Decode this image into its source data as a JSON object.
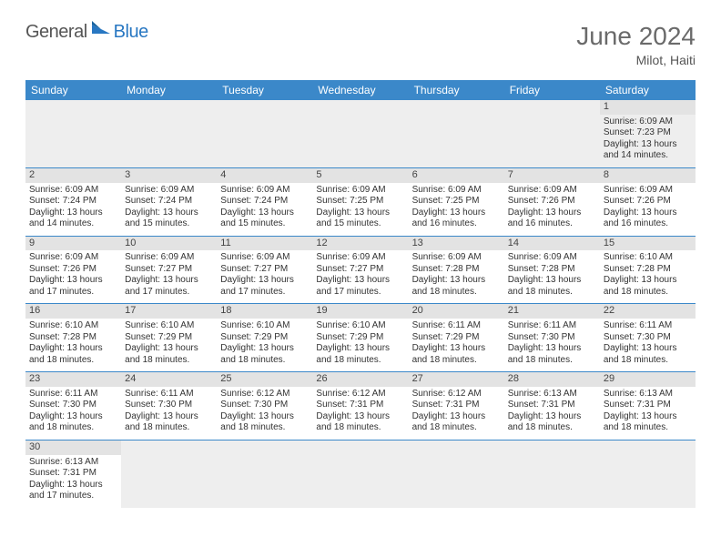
{
  "logo": {
    "part1": "General",
    "part2": "Blue"
  },
  "title": "June 2024",
  "location": "Milot, Haiti",
  "colors": {
    "header_bg": "#3b88c9",
    "header_text": "#ffffff",
    "daynum_bg": "#e3e3e3",
    "border": "#3b88c9",
    "logo_gray": "#555555",
    "logo_blue": "#2877c2"
  },
  "weekdays": [
    "Sunday",
    "Monday",
    "Tuesday",
    "Wednesday",
    "Thursday",
    "Friday",
    "Saturday"
  ],
  "weeks": [
    [
      null,
      null,
      null,
      null,
      null,
      null,
      {
        "d": "1",
        "sr": "Sunrise: 6:09 AM",
        "ss": "Sunset: 7:23 PM",
        "dl1": "Daylight: 13 hours",
        "dl2": "and 14 minutes."
      }
    ],
    [
      {
        "d": "2",
        "sr": "Sunrise: 6:09 AM",
        "ss": "Sunset: 7:24 PM",
        "dl1": "Daylight: 13 hours",
        "dl2": "and 14 minutes."
      },
      {
        "d": "3",
        "sr": "Sunrise: 6:09 AM",
        "ss": "Sunset: 7:24 PM",
        "dl1": "Daylight: 13 hours",
        "dl2": "and 15 minutes."
      },
      {
        "d": "4",
        "sr": "Sunrise: 6:09 AM",
        "ss": "Sunset: 7:24 PM",
        "dl1": "Daylight: 13 hours",
        "dl2": "and 15 minutes."
      },
      {
        "d": "5",
        "sr": "Sunrise: 6:09 AM",
        "ss": "Sunset: 7:25 PM",
        "dl1": "Daylight: 13 hours",
        "dl2": "and 15 minutes."
      },
      {
        "d": "6",
        "sr": "Sunrise: 6:09 AM",
        "ss": "Sunset: 7:25 PM",
        "dl1": "Daylight: 13 hours",
        "dl2": "and 16 minutes."
      },
      {
        "d": "7",
        "sr": "Sunrise: 6:09 AM",
        "ss": "Sunset: 7:26 PM",
        "dl1": "Daylight: 13 hours",
        "dl2": "and 16 minutes."
      },
      {
        "d": "8",
        "sr": "Sunrise: 6:09 AM",
        "ss": "Sunset: 7:26 PM",
        "dl1": "Daylight: 13 hours",
        "dl2": "and 16 minutes."
      }
    ],
    [
      {
        "d": "9",
        "sr": "Sunrise: 6:09 AM",
        "ss": "Sunset: 7:26 PM",
        "dl1": "Daylight: 13 hours",
        "dl2": "and 17 minutes."
      },
      {
        "d": "10",
        "sr": "Sunrise: 6:09 AM",
        "ss": "Sunset: 7:27 PM",
        "dl1": "Daylight: 13 hours",
        "dl2": "and 17 minutes."
      },
      {
        "d": "11",
        "sr": "Sunrise: 6:09 AM",
        "ss": "Sunset: 7:27 PM",
        "dl1": "Daylight: 13 hours",
        "dl2": "and 17 minutes."
      },
      {
        "d": "12",
        "sr": "Sunrise: 6:09 AM",
        "ss": "Sunset: 7:27 PM",
        "dl1": "Daylight: 13 hours",
        "dl2": "and 17 minutes."
      },
      {
        "d": "13",
        "sr": "Sunrise: 6:09 AM",
        "ss": "Sunset: 7:28 PM",
        "dl1": "Daylight: 13 hours",
        "dl2": "and 18 minutes."
      },
      {
        "d": "14",
        "sr": "Sunrise: 6:09 AM",
        "ss": "Sunset: 7:28 PM",
        "dl1": "Daylight: 13 hours",
        "dl2": "and 18 minutes."
      },
      {
        "d": "15",
        "sr": "Sunrise: 6:10 AM",
        "ss": "Sunset: 7:28 PM",
        "dl1": "Daylight: 13 hours",
        "dl2": "and 18 minutes."
      }
    ],
    [
      {
        "d": "16",
        "sr": "Sunrise: 6:10 AM",
        "ss": "Sunset: 7:28 PM",
        "dl1": "Daylight: 13 hours",
        "dl2": "and 18 minutes."
      },
      {
        "d": "17",
        "sr": "Sunrise: 6:10 AM",
        "ss": "Sunset: 7:29 PM",
        "dl1": "Daylight: 13 hours",
        "dl2": "and 18 minutes."
      },
      {
        "d": "18",
        "sr": "Sunrise: 6:10 AM",
        "ss": "Sunset: 7:29 PM",
        "dl1": "Daylight: 13 hours",
        "dl2": "and 18 minutes."
      },
      {
        "d": "19",
        "sr": "Sunrise: 6:10 AM",
        "ss": "Sunset: 7:29 PM",
        "dl1": "Daylight: 13 hours",
        "dl2": "and 18 minutes."
      },
      {
        "d": "20",
        "sr": "Sunrise: 6:11 AM",
        "ss": "Sunset: 7:29 PM",
        "dl1": "Daylight: 13 hours",
        "dl2": "and 18 minutes."
      },
      {
        "d": "21",
        "sr": "Sunrise: 6:11 AM",
        "ss": "Sunset: 7:30 PM",
        "dl1": "Daylight: 13 hours",
        "dl2": "and 18 minutes."
      },
      {
        "d": "22",
        "sr": "Sunrise: 6:11 AM",
        "ss": "Sunset: 7:30 PM",
        "dl1": "Daylight: 13 hours",
        "dl2": "and 18 minutes."
      }
    ],
    [
      {
        "d": "23",
        "sr": "Sunrise: 6:11 AM",
        "ss": "Sunset: 7:30 PM",
        "dl1": "Daylight: 13 hours",
        "dl2": "and 18 minutes."
      },
      {
        "d": "24",
        "sr": "Sunrise: 6:11 AM",
        "ss": "Sunset: 7:30 PM",
        "dl1": "Daylight: 13 hours",
        "dl2": "and 18 minutes."
      },
      {
        "d": "25",
        "sr": "Sunrise: 6:12 AM",
        "ss": "Sunset: 7:30 PM",
        "dl1": "Daylight: 13 hours",
        "dl2": "and 18 minutes."
      },
      {
        "d": "26",
        "sr": "Sunrise: 6:12 AM",
        "ss": "Sunset: 7:31 PM",
        "dl1": "Daylight: 13 hours",
        "dl2": "and 18 minutes."
      },
      {
        "d": "27",
        "sr": "Sunrise: 6:12 AM",
        "ss": "Sunset: 7:31 PM",
        "dl1": "Daylight: 13 hours",
        "dl2": "and 18 minutes."
      },
      {
        "d": "28",
        "sr": "Sunrise: 6:13 AM",
        "ss": "Sunset: 7:31 PM",
        "dl1": "Daylight: 13 hours",
        "dl2": "and 18 minutes."
      },
      {
        "d": "29",
        "sr": "Sunrise: 6:13 AM",
        "ss": "Sunset: 7:31 PM",
        "dl1": "Daylight: 13 hours",
        "dl2": "and 18 minutes."
      }
    ],
    [
      {
        "d": "30",
        "sr": "Sunrise: 6:13 AM",
        "ss": "Sunset: 7:31 PM",
        "dl1": "Daylight: 13 hours",
        "dl2": "and 17 minutes."
      },
      null,
      null,
      null,
      null,
      null,
      null
    ]
  ]
}
